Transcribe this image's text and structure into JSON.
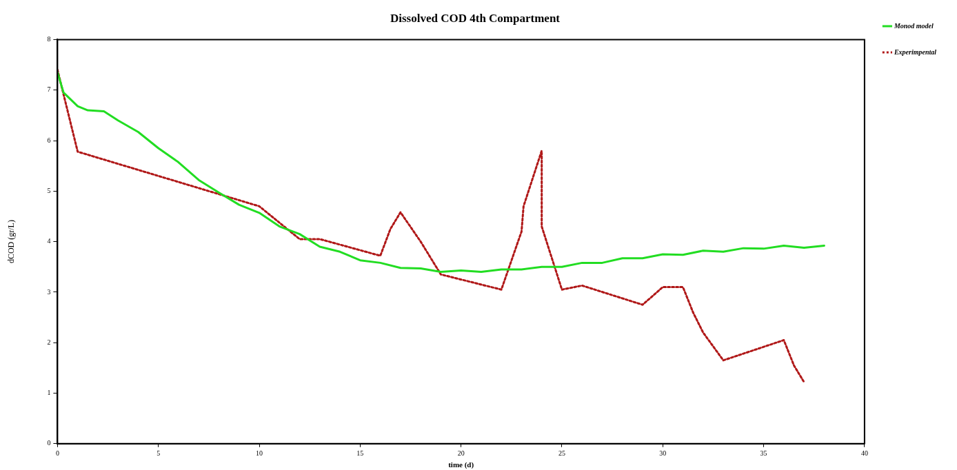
{
  "chart_data": {
    "type": "line",
    "title": "Dissolved COD 4th Compartment",
    "xlabel": "time (d)",
    "ylabel": "dCOD (gr/L)",
    "xlim": [
      0,
      40
    ],
    "xticks": [
      0,
      5,
      10,
      15,
      20,
      25,
      30,
      35,
      40
    ],
    "ylim": [
      0,
      8
    ],
    "yticks": [
      0,
      1,
      2,
      3,
      4,
      5,
      6,
      7,
      8
    ],
    "grid": false,
    "legend": "top right",
    "marker": "none",
    "series": [
      {
        "name": "Monod model",
        "color": "#22dd22",
        "line_style": "solid",
        "x": [
          0,
          0.3,
          1,
          1.5,
          2.3,
          3,
          4,
          5,
          6,
          7,
          8,
          9,
          10,
          11,
          12,
          13,
          14,
          15,
          16,
          17,
          18,
          19,
          20,
          21,
          22,
          23,
          24,
          25,
          26,
          27,
          28,
          29,
          30,
          31,
          32,
          33,
          34,
          35,
          36,
          37,
          38
        ],
        "values": [
          7.35,
          6.95,
          6.68,
          6.6,
          6.58,
          6.4,
          6.17,
          5.85,
          5.57,
          5.22,
          4.97,
          4.73,
          4.57,
          4.3,
          4.15,
          3.9,
          3.8,
          3.63,
          3.58,
          3.48,
          3.47,
          3.4,
          3.43,
          3.4,
          3.45,
          3.45,
          3.5,
          3.5,
          3.58,
          3.58,
          3.67,
          3.67,
          3.75,
          3.74,
          3.82,
          3.8,
          3.87,
          3.86,
          3.92,
          3.88,
          3.92
        ]
      },
      {
        "name": "Experimpental",
        "color": "#b01818",
        "line_style": "dotted",
        "x": [
          0,
          1,
          10,
          12,
          13,
          16,
          16.5,
          17,
          18,
          19,
          22,
          23,
          23.1,
          24,
          24,
          25,
          26,
          29,
          30,
          31,
          31.5,
          32,
          33,
          36,
          36.5,
          37
        ],
        "values": [
          7.4,
          5.78,
          4.7,
          4.05,
          4.05,
          3.72,
          4.25,
          4.58,
          4.0,
          3.35,
          3.05,
          4.2,
          4.7,
          5.8,
          4.3,
          3.05,
          3.13,
          2.75,
          3.1,
          3.1,
          2.6,
          2.2,
          1.65,
          2.05,
          1.55,
          1.22
        ]
      }
    ]
  }
}
